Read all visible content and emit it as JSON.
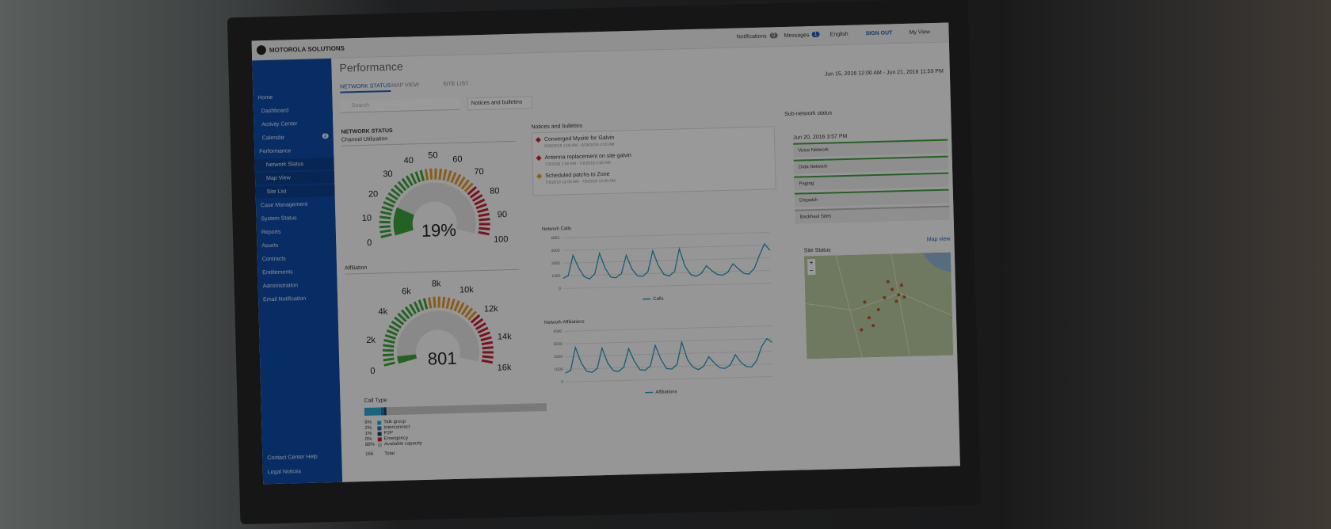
{
  "header": {
    "brand": "MOTOROLA SOLUTIONS",
    "notifications": "Notifications",
    "notifications_count": 0,
    "messages": "Messages",
    "messages_count": 1,
    "language": "English",
    "sign_out": "SIGN OUT",
    "my_view": "My View"
  },
  "sidebar": {
    "items": [
      {
        "label": "Home",
        "level": 0
      },
      {
        "label": "Dashboard",
        "level": 1
      },
      {
        "label": "Activity Center",
        "level": 1
      },
      {
        "label": "Calendar",
        "level": 1,
        "badge": 2
      },
      {
        "label": "Performance",
        "level": 0
      },
      {
        "label": "Network Status",
        "level": 2
      },
      {
        "label": "Map View",
        "level": 2
      },
      {
        "label": "Site List",
        "level": 2
      },
      {
        "label": "Case Management",
        "level": 0
      },
      {
        "label": "System Status",
        "level": 0
      },
      {
        "label": "Reports",
        "level": 0
      },
      {
        "label": "Assets",
        "level": 0
      },
      {
        "label": "Contracts",
        "level": 0
      },
      {
        "label": "Entitlements",
        "level": 0
      },
      {
        "label": "Administration",
        "level": 0
      },
      {
        "label": "Email Notification",
        "level": 0
      }
    ],
    "bottom": [
      "Contact Center Help",
      "Legal Notices"
    ]
  },
  "page": {
    "title": "Performance",
    "tabs": [
      "NETWORK STATUS",
      "MAP VIEW",
      "SITE LIST"
    ],
    "date_range": "Jun 15, 2016 12:00 AM - Jun 21, 2016 11:59 PM",
    "search": "Search",
    "filter": "Notices and bulletins"
  },
  "network_status": {
    "title": "NETWORK STATUS",
    "gauges": [
      {
        "title": "Channel Utilization",
        "range": [
          0,
          100
        ],
        "ticks": [
          0,
          10,
          20,
          30,
          40,
          50,
          60,
          70,
          80,
          90,
          100
        ],
        "value": 19,
        "value_label": "19%"
      },
      {
        "title": "Affiliation",
        "range": [
          0,
          16000
        ],
        "ticks": [
          0,
          {
            "value": 2000,
            "label": "2k"
          },
          {
            "value": 4000,
            "label": "4k"
          },
          {
            "value": 6000,
            "label": "6k"
          },
          {
            "value": 8000,
            "label": "8k"
          },
          {
            "value": 10000,
            "label": "10k"
          },
          {
            "value": 12000,
            "label": "12k"
          },
          {
            "value": 14000,
            "label": "14k"
          },
          {
            "value": 16000,
            "label": "16k"
          }
        ],
        "value": 801
      }
    ]
  },
  "call_type": {
    "title": "Call Type",
    "items": [
      {
        "name": "Talk group",
        "value": 9,
        "value_label": "9%",
        "color": "#2aa9d6"
      },
      {
        "name": "Interconnect",
        "value": 2,
        "value_label": "2%",
        "color": "#1f6fa8"
      },
      {
        "name": "P2P",
        "value": 1,
        "value_label": "1%",
        "color": "#173c6e"
      },
      {
        "name": "Emergency",
        "value": 0,
        "value_label": "0%",
        "color": "#c8202f"
      },
      {
        "name": "Available capacity",
        "value": 88,
        "value_label": "88%",
        "color": "#c9c9c9"
      }
    ],
    "total": 166,
    "total_label": "Total"
  },
  "notices": {
    "title": "Notices and bulletins",
    "items": [
      {
        "title": "Converged Mysite for Galvin",
        "dates": "6/28/2016 1:00 AM - 6/28/2016 2:00 AM",
        "color": "#d0202f"
      },
      {
        "title": "Antenna replacement on site galvin",
        "dates": "7/2/2016 1:00 AM - 7/2/2016 1:00 AM",
        "color": "#d0202f"
      },
      {
        "title": "Scheduled patchs to Zone",
        "dates": "7/5/2016 12:00 AM - 7/5/2016 12:00 AM",
        "color": "#e8a21a"
      }
    ]
  },
  "charts": [
    {
      "title": "Network Calls",
      "legend": "Calls",
      "color": "#1f9cc0",
      "ylim": [
        0,
        4000
      ],
      "yticks": [
        0,
        1000,
        2000,
        3000,
        4000
      ],
      "values": [
        800,
        1000,
        2600,
        1600,
        900,
        700,
        1100,
        2700,
        1500,
        800,
        750,
        1050,
        2500,
        1400,
        850,
        800,
        1150,
        2800,
        1600,
        900,
        780,
        1100,
        2900,
        1500,
        850,
        700,
        900,
        1500,
        1100,
        800,
        720,
        950,
        1600,
        1200,
        820,
        760,
        1200,
        2200,
        3100,
        2600
      ]
    },
    {
      "title": "Network Affiliations",
      "legend": "Affiliations",
      "color": "#1f9cc0",
      "ylim": [
        0,
        4000
      ],
      "yticks": [
        0,
        1000,
        2000,
        3000,
        4000
      ],
      "values": [
        700,
        900,
        2700,
        1500,
        800,
        700,
        1000,
        2600,
        1400,
        800,
        720,
        1050,
        2500,
        1500,
        820,
        760,
        1100,
        2700,
        1600,
        850,
        800,
        1150,
        2900,
        1500,
        900,
        700,
        950,
        1700,
        1200,
        800,
        740,
        1000,
        1800,
        1200,
        850,
        800,
        1300,
        2400,
        3000,
        2700
      ]
    }
  ],
  "subnetwork": {
    "title": "Sub-network status",
    "timestamp": "Jun 20, 2016 3:57 PM",
    "items": [
      "Voice Network",
      "Data Network",
      "Paging",
      "Dispatch",
      "Backhaul Sites"
    ]
  },
  "site_status": {
    "title": "Site Status",
    "link": "Map view",
    "zoom_in": "+",
    "zoom_out": "−"
  }
}
